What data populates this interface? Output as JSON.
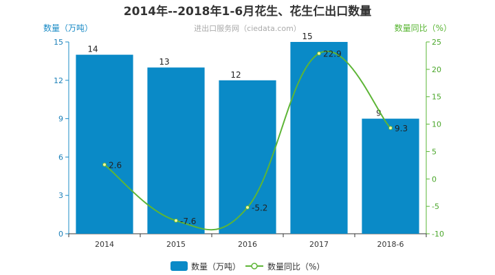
{
  "colors": {
    "bar": "#0a8ac7",
    "line": "#5db536",
    "left_axis": "#1a8bc6",
    "right_axis": "#57b431"
  },
  "chart_data": {
    "type": "bar",
    "title": "2014年--2018年1-6月花生、花生仁出口数量",
    "subtitle": "进出口服务网（ciedata.com）",
    "categories": [
      "2014",
      "2015",
      "2016",
      "2017",
      "2018-6"
    ],
    "left_axis": {
      "name": "数量（万吨）",
      "ylim": [
        0,
        15
      ],
      "ticks": [
        "0",
        "3",
        "6",
        "9",
        "12",
        "15"
      ]
    },
    "right_axis": {
      "name": "数量同比（%）",
      "ylim": [
        -10,
        25
      ],
      "ticks": [
        "-10",
        "-5",
        "0",
        "5",
        "10",
        "15",
        "20",
        "25"
      ]
    },
    "series": [
      {
        "name": "数量（万吨）",
        "type": "bar",
        "axis": "left",
        "values": [
          14,
          13,
          12,
          15,
          9
        ],
        "labels": [
          "14",
          "13",
          "12",
          "15",
          "9"
        ]
      },
      {
        "name": "数量同比（%）",
        "type": "line",
        "axis": "right",
        "values": [
          2.6,
          -7.6,
          -5.2,
          22.9,
          9.3
        ],
        "labels": [
          "2.6",
          "-7.6",
          "-5.2",
          "22.9",
          "9.3"
        ]
      }
    ],
    "legend": {
      "position": "bottom",
      "items": [
        "数量（万吨）",
        "数量同比（%）"
      ]
    },
    "grid": false
  }
}
